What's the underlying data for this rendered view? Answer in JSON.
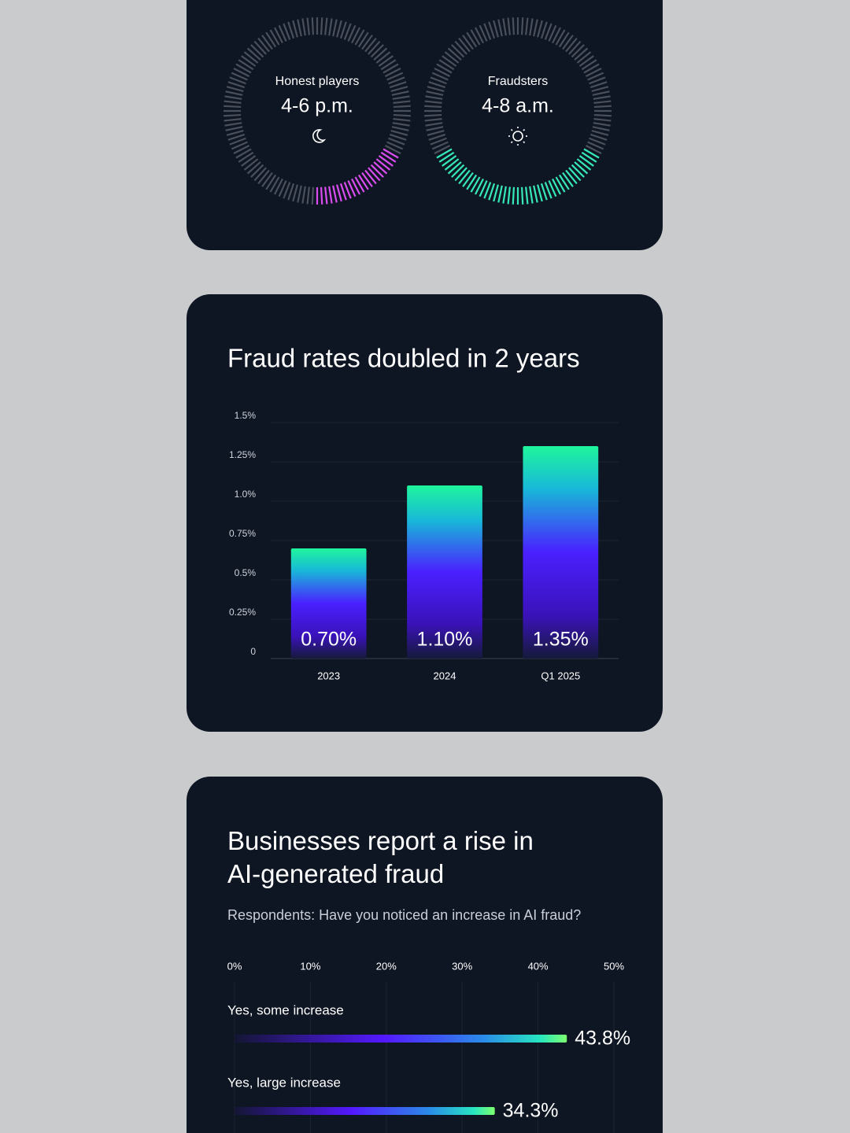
{
  "clocks": [
    {
      "label": "Honest players",
      "time": "4-6 p.m.",
      "color": "#d94df0"
    },
    {
      "label": "Fraudsters",
      "time": "4-8 a.m.",
      "color": "#36e8b8"
    }
  ],
  "chart_data": [
    {
      "type": "bar",
      "title": "Fraud rates doubled in 2 years",
      "categories": [
        "2023",
        "2024",
        "Q1 2025"
      ],
      "values": [
        0.7,
        1.1,
        1.35
      ],
      "value_labels": [
        "0.70%",
        "1.10%",
        "1.35%"
      ],
      "ylim": [
        0,
        1.5
      ],
      "yticks": [
        0,
        {
          "value": 0.25,
          "label": "0.25%"
        },
        {
          "value": 0.5,
          "label": "0.5%"
        },
        {
          "value": 0.75,
          "label": "0.75%"
        },
        {
          "value": 1,
          "label": "1.0%"
        },
        {
          "value": 1.25,
          "label": "1.25%"
        },
        {
          "value": 1.5,
          "label": "1.5%"
        }
      ],
      "grid": true
    },
    {
      "type": "hbar",
      "title": "Businesses report a rise in AI-generated fraud",
      "subtitle": "Respondents: Have you noticed an increase in AI fraud?",
      "categories": [
        "Yes, some increase",
        "Yes, large increase"
      ],
      "values": [
        43.8,
        34.3
      ],
      "value_labels": [
        "43.8%",
        "34.3%"
      ],
      "xlim": [
        0,
        50
      ],
      "xticks": [
        {
          "value": 0,
          "label": "0%"
        },
        {
          "value": 10,
          "label": "10%"
        },
        {
          "value": 20,
          "label": "20%"
        },
        {
          "value": 30,
          "label": "30%"
        },
        {
          "value": 40,
          "label": "40%"
        },
        {
          "value": 50,
          "label": "50%"
        }
      ],
      "grid": true
    }
  ]
}
